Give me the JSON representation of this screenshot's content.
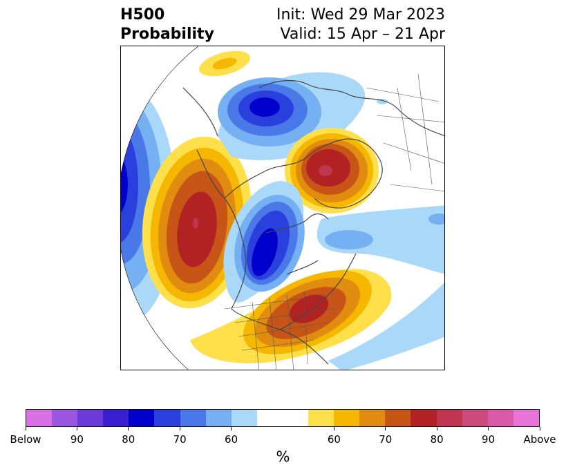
{
  "header": {
    "title_line1": "H500",
    "title_line2": "Probability",
    "init_text": "Init: Wed 29 Mar 2023",
    "valid_text": "Valid: 15 Apr – 21 Apr"
  },
  "map": {
    "projection": "north-polar-stereographic",
    "anomalies": [
      {
        "name": "alaska-low",
        "sign": "below",
        "peak_percent": 80
      },
      {
        "name": "greenland-high",
        "sign": "above",
        "peak_percent": 85
      },
      {
        "name": "north-pacific-high",
        "sign": "above",
        "peak_percent": 80
      },
      {
        "name": "western-canada-low",
        "sign": "below",
        "peak_percent": 85
      },
      {
        "name": "eastern-us-high",
        "sign": "above",
        "peak_percent": 80
      },
      {
        "name": "far-pacific-low",
        "sign": "below",
        "peak_percent": 80
      }
    ]
  },
  "colorbar": {
    "unit_label": "%",
    "colors": [
      "#da70e6",
      "#9b57e0",
      "#6a3bd8",
      "#3a1fd2",
      "#0000cc",
      "#2a40dc",
      "#4a78e8",
      "#74b0f2",
      "#aad8f8",
      "#ffffff",
      "#ffe04a",
      "#f5b700",
      "#e08c10",
      "#c85518",
      "#b22222",
      "#c03550",
      "#cc4a80",
      "#d85aa8",
      "#e673d8"
    ],
    "tick_labels": [
      "Below",
      "90",
      "80",
      "70",
      "60",
      "60",
      "70",
      "80",
      "90",
      "Above"
    ]
  }
}
